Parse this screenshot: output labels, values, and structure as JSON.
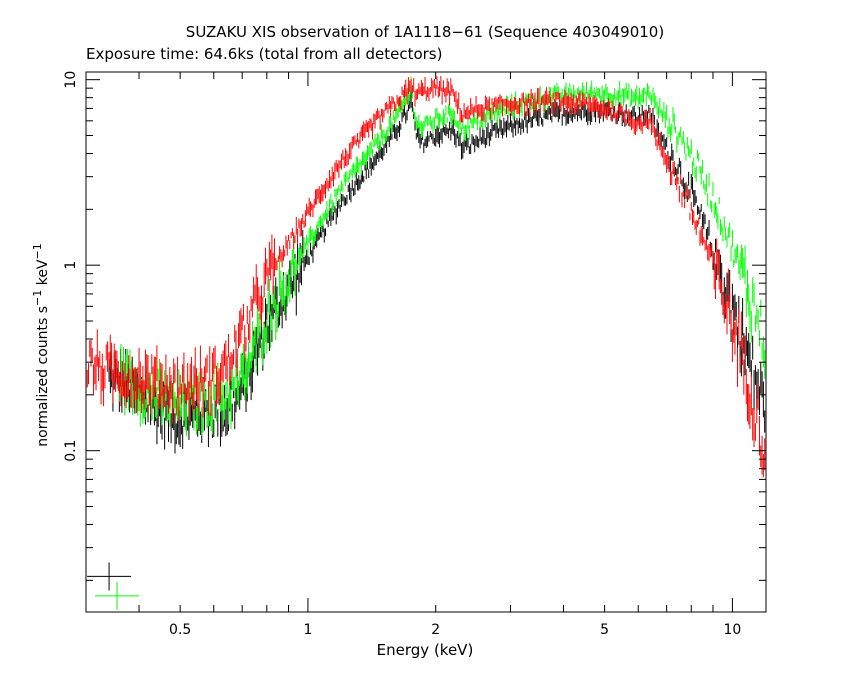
{
  "chart_data": {
    "type": "scatter",
    "title": "SUZAKU XIS observation of 1A1118−61 (Sequence 403049010)",
    "subtitle": "Exposure time: 64.6ks (total from all detectors)",
    "xlabel": "Energy (keV)",
    "ylabel": {
      "base": "normalized counts s",
      "exp1": "−1",
      "mid": " keV",
      "exp2": "−1"
    },
    "x_scale": "log",
    "y_scale": "log",
    "xlim": [
      0.3,
      12
    ],
    "ylim": [
      0.0135,
      11
    ],
    "x_ticks": [
      {
        "value": 0.5,
        "label": "0.5"
      },
      {
        "value": 1,
        "label": "1"
      },
      {
        "value": 2,
        "label": "2"
      },
      {
        "value": 5,
        "label": "5"
      },
      {
        "value": 10,
        "label": "10"
      }
    ],
    "y_ticks": [
      {
        "value": 0.1,
        "label": "0.1"
      },
      {
        "value": 1,
        "label": "1"
      },
      {
        "value": 10,
        "label": "10"
      }
    ],
    "grid": false,
    "colors": {
      "xis0": "#000000",
      "xis1": "#00ff00",
      "xis3": "#ff0000"
    },
    "series": [
      {
        "color": "#000000",
        "points": [
          [
            0.34,
            0.25
          ],
          [
            0.38,
            0.22
          ],
          [
            0.42,
            0.18
          ],
          [
            0.45,
            0.16
          ],
          [
            0.5,
            0.15
          ],
          [
            0.55,
            0.16
          ],
          [
            0.6,
            0.16
          ],
          [
            0.65,
            0.17
          ],
          [
            0.7,
            0.21
          ],
          [
            0.75,
            0.32
          ],
          [
            0.8,
            0.48
          ],
          [
            0.9,
            0.75
          ],
          [
            1.0,
            1.1
          ],
          [
            1.1,
            1.6
          ],
          [
            1.2,
            2.2
          ],
          [
            1.3,
            2.8
          ],
          [
            1.4,
            3.4
          ],
          [
            1.5,
            4.2
          ],
          [
            1.6,
            5.2
          ],
          [
            1.7,
            6.5
          ],
          [
            1.75,
            7.6
          ],
          [
            1.8,
            5.0
          ],
          [
            1.85,
            4.6
          ],
          [
            1.9,
            4.7
          ],
          [
            2.0,
            5.0
          ],
          [
            2.1,
            5.2
          ],
          [
            2.2,
            5.4
          ],
          [
            2.3,
            4.3
          ],
          [
            2.4,
            4.4
          ],
          [
            2.6,
            4.9
          ],
          [
            3.0,
            5.6
          ],
          [
            3.5,
            6.2
          ],
          [
            4.0,
            6.6
          ],
          [
            4.5,
            6.8
          ],
          [
            5.0,
            6.8
          ],
          [
            5.5,
            6.6
          ],
          [
            6.0,
            6.2
          ],
          [
            6.4,
            6.6
          ],
          [
            6.6,
            5.4
          ],
          [
            7.0,
            4.3
          ],
          [
            7.5,
            3.3
          ],
          [
            8.0,
            2.4
          ],
          [
            8.5,
            1.7
          ],
          [
            9.0,
            1.2
          ],
          [
            9.5,
            0.85
          ],
          [
            10.0,
            0.6
          ],
          [
            10.5,
            0.42
          ],
          [
            11.0,
            0.3
          ],
          [
            11.5,
            0.22
          ],
          [
            12.0,
            0.16
          ]
        ]
      },
      {
        "color": "#00ff00",
        "points": [
          [
            0.36,
            0.26
          ],
          [
            0.4,
            0.22
          ],
          [
            0.45,
            0.19
          ],
          [
            0.5,
            0.18
          ],
          [
            0.55,
            0.18
          ],
          [
            0.6,
            0.19
          ],
          [
            0.65,
            0.2
          ],
          [
            0.7,
            0.24
          ],
          [
            0.75,
            0.35
          ],
          [
            0.8,
            0.52
          ],
          [
            0.9,
            0.85
          ],
          [
            1.0,
            1.3
          ],
          [
            1.1,
            1.9
          ],
          [
            1.2,
            2.6
          ],
          [
            1.3,
            3.3
          ],
          [
            1.4,
            4.0
          ],
          [
            1.5,
            5.0
          ],
          [
            1.6,
            6.1
          ],
          [
            1.7,
            7.8
          ],
          [
            1.75,
            9.0
          ],
          [
            1.8,
            6.0
          ],
          [
            1.85,
            5.5
          ],
          [
            1.9,
            5.7
          ],
          [
            2.0,
            6.1
          ],
          [
            2.1,
            6.4
          ],
          [
            2.2,
            6.6
          ],
          [
            2.3,
            5.4
          ],
          [
            2.4,
            5.6
          ],
          [
            2.6,
            6.3
          ],
          [
            3.0,
            7.1
          ],
          [
            3.5,
            7.8
          ],
          [
            4.0,
            8.2
          ],
          [
            4.5,
            8.4
          ],
          [
            5.0,
            8.4
          ],
          [
            5.5,
            8.2
          ],
          [
            6.0,
            7.9
          ],
          [
            6.4,
            8.6
          ],
          [
            6.6,
            7.2
          ],
          [
            7.0,
            6.2
          ],
          [
            7.5,
            5.0
          ],
          [
            8.0,
            3.9
          ],
          [
            8.5,
            3.0
          ],
          [
            9.0,
            2.3
          ],
          [
            9.5,
            1.7
          ],
          [
            10.0,
            1.25
          ],
          [
            10.5,
            0.92
          ],
          [
            11.0,
            0.68
          ],
          [
            11.5,
            0.5
          ],
          [
            12.0,
            0.36
          ]
        ]
      },
      {
        "color": "#ff0000",
        "points": [
          [
            0.3,
            0.3
          ],
          [
            0.33,
            0.27
          ],
          [
            0.36,
            0.26
          ],
          [
            0.4,
            0.24
          ],
          [
            0.45,
            0.23
          ],
          [
            0.5,
            0.22
          ],
          [
            0.55,
            0.23
          ],
          [
            0.6,
            0.25
          ],
          [
            0.65,
            0.3
          ],
          [
            0.7,
            0.42
          ],
          [
            0.75,
            0.6
          ],
          [
            0.8,
            0.85
          ],
          [
            0.9,
            1.3
          ],
          [
            1.0,
            1.9
          ],
          [
            1.1,
            2.7
          ],
          [
            1.2,
            3.6
          ],
          [
            1.3,
            4.5
          ],
          [
            1.4,
            5.5
          ],
          [
            1.5,
            6.5
          ],
          [
            1.6,
            7.4
          ],
          [
            1.7,
            8.5
          ],
          [
            1.75,
            9.2
          ],
          [
            1.8,
            8.3
          ],
          [
            1.85,
            8.6
          ],
          [
            1.9,
            8.8
          ],
          [
            2.0,
            9.0
          ],
          [
            2.1,
            8.7
          ],
          [
            2.2,
            8.4
          ],
          [
            2.3,
            6.6
          ],
          [
            2.4,
            6.7
          ],
          [
            2.6,
            7.0
          ],
          [
            3.0,
            7.4
          ],
          [
            3.5,
            7.6
          ],
          [
            4.0,
            7.6
          ],
          [
            4.5,
            7.4
          ],
          [
            5.0,
            7.0
          ],
          [
            5.5,
            6.5
          ],
          [
            6.0,
            5.8
          ],
          [
            6.4,
            6.2
          ],
          [
            6.6,
            4.8
          ],
          [
            7.0,
            3.7
          ],
          [
            7.5,
            2.7
          ],
          [
            8.0,
            1.95
          ],
          [
            8.5,
            1.4
          ],
          [
            9.0,
            1.0
          ],
          [
            9.5,
            0.7
          ],
          [
            10.0,
            0.48
          ],
          [
            10.5,
            0.33
          ],
          [
            11.0,
            0.22
          ],
          [
            11.5,
            0.15
          ],
          [
            12.0,
            0.09
          ]
        ]
      }
    ],
    "legend_markers": [
      {
        "color": "#000000",
        "x": 0.34,
        "y": 0.021
      },
      {
        "color": "#00ff00",
        "x": 0.355,
        "y": 0.0165
      }
    ]
  }
}
